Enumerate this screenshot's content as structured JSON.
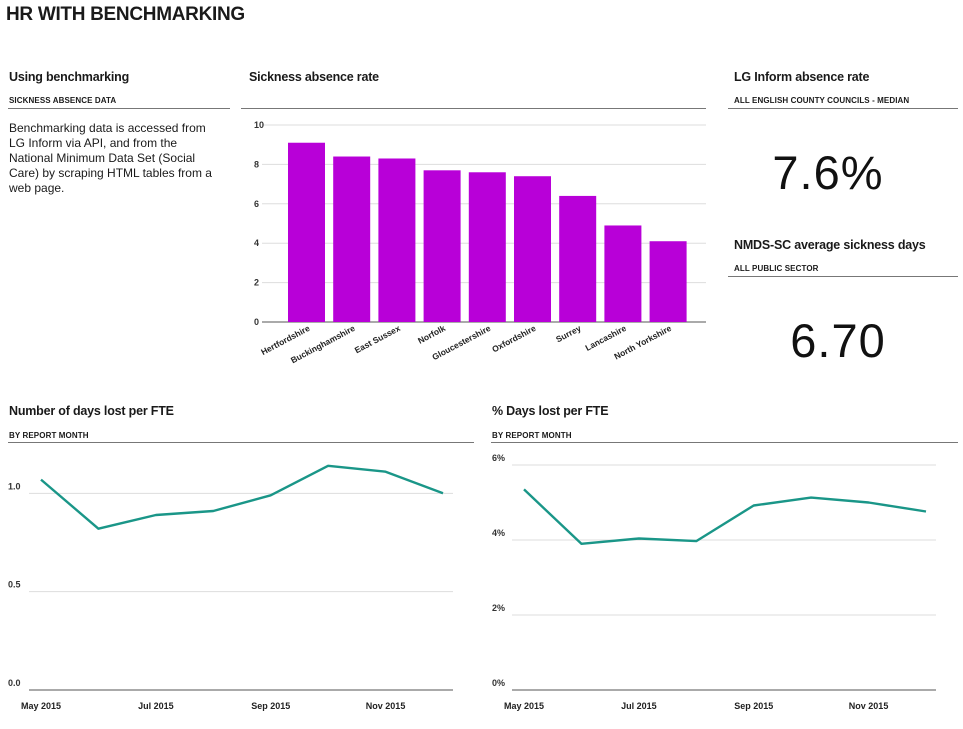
{
  "page": {
    "title": "HR WITH BENCHMARKING"
  },
  "info_panel": {
    "title": "Using benchmarking",
    "subtitle": "SICKNESS ABSENCE DATA",
    "description": "Benchmarking data is accessed from LG Inform via API, and from the National Minimum Data Set (Social Care) by scraping HTML tables from a web page."
  },
  "kpi_lg": {
    "title": "LG Inform absence rate",
    "subtitle": "ALL ENGLISH COUNTY COUNCILS - MEDIAN",
    "value": "7.6%"
  },
  "kpi_nmds": {
    "title": "NMDS-SC average sickness days",
    "subtitle": "ALL PUBLIC SECTOR",
    "value": "6.70"
  },
  "colors": {
    "bar": "#b800d8",
    "line": "#1a9688",
    "grid": "#dddddd",
    "axis": "#555555"
  },
  "chart_data": [
    {
      "type": "bar",
      "title": "Sickness absence rate",
      "categories": [
        "Hertfordshire",
        "Buckinghamshire",
        "East Sussex",
        "Norfolk",
        "Gloucestershire",
        "Oxfordshire",
        "Surrey",
        "Lancashire",
        "North Yorkshire"
      ],
      "values": [
        9.1,
        8.4,
        8.3,
        7.7,
        7.6,
        7.4,
        6.4,
        4.9,
        4.1
      ],
      "yticks": [
        "0",
        "2",
        "4",
        "6",
        "8",
        "10"
      ],
      "ylim": [
        0,
        10
      ],
      "grid": true
    },
    {
      "type": "line",
      "title": "Number of days lost per FTE",
      "subtitle": "BY REPORT MONTH",
      "x": [
        "May 2015",
        "Jun 2015",
        "Jul 2015",
        "Aug 2015",
        "Sep 2015",
        "Oct 2015",
        "Nov 2015",
        "Dec 2015"
      ],
      "xticks": [
        "May 2015",
        "Jul 2015",
        "Sep 2015",
        "Nov 2015"
      ],
      "values": [
        1.07,
        0.82,
        0.89,
        0.91,
        0.99,
        1.14,
        1.11,
        1.0
      ],
      "yticks": [
        "0.0",
        "0.5",
        "1.0"
      ],
      "ylim": [
        0,
        1.2
      ],
      "grid": true
    },
    {
      "type": "line",
      "title": "% Days lost per FTE",
      "subtitle": "BY REPORT MONTH",
      "x": [
        "May 2015",
        "Jun 2015",
        "Jul 2015",
        "Aug 2015",
        "Sep 2015",
        "Oct 2015",
        "Nov 2015",
        "Dec 2015"
      ],
      "xticks": [
        "May 2015",
        "Jul 2015",
        "Sep 2015",
        "Nov 2015"
      ],
      "values": [
        5.35,
        3.9,
        4.04,
        3.97,
        4.92,
        5.13,
        5.0,
        4.76
      ],
      "yticks": [
        "0%",
        "2%",
        "4%",
        "6%"
      ],
      "ylim": [
        0,
        6
      ],
      "grid": true
    }
  ]
}
